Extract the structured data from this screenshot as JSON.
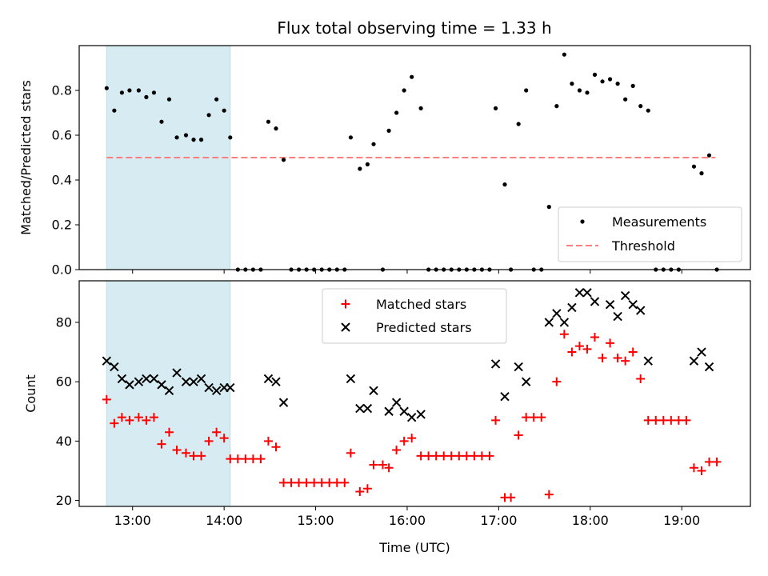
{
  "title": "Flux total observing time = 1.33 h",
  "colors": {
    "threshold": "#ff7f7f",
    "shade": "#add8e6",
    "matched": "#ff0000",
    "predicted": "#000000",
    "points": "#000000"
  },
  "chart_data": [
    {
      "type": "scatter",
      "ylabel": "Matched/Predicted stars",
      "xlim": [
        "12:25",
        "19:45"
      ],
      "ylim": [
        0,
        1.0
      ],
      "yticks": [
        "0.0",
        "0.2",
        "0.4",
        "0.6",
        "0.8"
      ],
      "shaded_region": [
        "12:43",
        "14:04"
      ],
      "threshold": 0.5,
      "threshold_range": [
        "12:43",
        "19:22"
      ],
      "legend_position": "lower right",
      "legend": [
        "Measurements",
        "Threshold"
      ],
      "series": [
        {
          "name": "Measurements",
          "points": [
            [
              "12:43",
              0.81
            ],
            [
              "12:48",
              0.71
            ],
            [
              "12:53",
              0.79
            ],
            [
              "12:58",
              0.8
            ],
            [
              "13:04",
              0.8
            ],
            [
              "13:09",
              0.77
            ],
            [
              "13:14",
              0.79
            ],
            [
              "13:19",
              0.66
            ],
            [
              "13:24",
              0.76
            ],
            [
              "13:29",
              0.59
            ],
            [
              "13:35",
              0.6
            ],
            [
              "13:40",
              0.58
            ],
            [
              "13:45",
              0.58
            ],
            [
              "13:50",
              0.69
            ],
            [
              "13:55",
              0.76
            ],
            [
              "14:00",
              0.71
            ],
            [
              "14:04",
              0.59
            ],
            [
              "14:09",
              0.0
            ],
            [
              "14:14",
              0.0
            ],
            [
              "14:19",
              0.0
            ],
            [
              "14:24",
              0.0
            ],
            [
              "14:29",
              0.66
            ],
            [
              "14:34",
              0.63
            ],
            [
              "14:39",
              0.49
            ],
            [
              "14:44",
              0.0
            ],
            [
              "14:49",
              0.0
            ],
            [
              "14:54",
              0.0
            ],
            [
              "14:59",
              0.0
            ],
            [
              "15:04",
              0.0
            ],
            [
              "15:09",
              0.0
            ],
            [
              "15:14",
              0.0
            ],
            [
              "15:19",
              0.0
            ],
            [
              "15:23",
              0.59
            ],
            [
              "15:29",
              0.45
            ],
            [
              "15:34",
              0.47
            ],
            [
              "15:38",
              0.56
            ],
            [
              "15:44",
              0.0
            ],
            [
              "15:48",
              0.62
            ],
            [
              "15:53",
              0.7
            ],
            [
              "15:58",
              0.8
            ],
            [
              "16:03",
              0.86
            ],
            [
              "16:09",
              0.72
            ],
            [
              "16:14",
              0.0
            ],
            [
              "16:19",
              0.0
            ],
            [
              "16:24",
              0.0
            ],
            [
              "16:29",
              0.0
            ],
            [
              "16:34",
              0.0
            ],
            [
              "16:39",
              0.0
            ],
            [
              "16:44",
              0.0
            ],
            [
              "16:49",
              0.0
            ],
            [
              "16:54",
              0.0
            ],
            [
              "16:58",
              0.72
            ],
            [
              "17:04",
              0.38
            ],
            [
              "17:08",
              0.0
            ],
            [
              "17:13",
              0.65
            ],
            [
              "17:18",
              0.8
            ],
            [
              "17:23",
              0.0
            ],
            [
              "17:28",
              0.0
            ],
            [
              "17:33",
              0.28
            ],
            [
              "17:38",
              0.73
            ],
            [
              "17:43",
              0.96
            ],
            [
              "17:48",
              0.83
            ],
            [
              "17:53",
              0.8
            ],
            [
              "17:58",
              0.79
            ],
            [
              "18:03",
              0.87
            ],
            [
              "18:08",
              0.84
            ],
            [
              "18:13",
              0.85
            ],
            [
              "18:18",
              0.83
            ],
            [
              "18:23",
              0.76
            ],
            [
              "18:28",
              0.82
            ],
            [
              "18:33",
              0.73
            ],
            [
              "18:38",
              0.71
            ],
            [
              "18:43",
              0.0
            ],
            [
              "18:48",
              0.0
            ],
            [
              "18:53",
              0.0
            ],
            [
              "18:58",
              0.0
            ],
            [
              "19:08",
              0.46
            ],
            [
              "19:13",
              0.43
            ],
            [
              "19:18",
              0.51
            ],
            [
              "19:23",
              0.0
            ]
          ]
        }
      ]
    },
    {
      "type": "scatter",
      "ylabel": "Count",
      "xlabel": "Time (UTC)",
      "xlim": [
        "12:25",
        "19:45"
      ],
      "ylim": [
        18,
        94
      ],
      "yticks": [
        "20",
        "40",
        "60",
        "80"
      ],
      "xticks": [
        "13:00",
        "14:00",
        "15:00",
        "16:00",
        "17:00",
        "18:00",
        "19:00"
      ],
      "shaded_region": [
        "12:43",
        "14:04"
      ],
      "legend_position": "upper center",
      "legend": [
        "Matched stars",
        "Predicted stars"
      ],
      "series": [
        {
          "name": "Matched stars",
          "marker": "+",
          "points": [
            [
              "12:43",
              54
            ],
            [
              "12:48",
              46
            ],
            [
              "12:53",
              48
            ],
            [
              "12:58",
              47
            ],
            [
              "13:04",
              48
            ],
            [
              "13:09",
              47
            ],
            [
              "13:14",
              48
            ],
            [
              "13:19",
              39
            ],
            [
              "13:24",
              43
            ],
            [
              "13:29",
              37
            ],
            [
              "13:35",
              36
            ],
            [
              "13:40",
              35
            ],
            [
              "13:45",
              35
            ],
            [
              "13:50",
              40
            ],
            [
              "13:55",
              43
            ],
            [
              "14:00",
              41
            ],
            [
              "14:04",
              34
            ],
            [
              "14:09",
              34
            ],
            [
              "14:14",
              34
            ],
            [
              "14:19",
              34
            ],
            [
              "14:24",
              34
            ],
            [
              "14:29",
              40
            ],
            [
              "14:34",
              38
            ],
            [
              "14:39",
              26
            ],
            [
              "14:44",
              26
            ],
            [
              "14:49",
              26
            ],
            [
              "14:54",
              26
            ],
            [
              "14:59",
              26
            ],
            [
              "15:04",
              26
            ],
            [
              "15:09",
              26
            ],
            [
              "15:14",
              26
            ],
            [
              "15:19",
              26
            ],
            [
              "15:23",
              36
            ],
            [
              "15:29",
              23
            ],
            [
              "15:34",
              24
            ],
            [
              "15:38",
              32
            ],
            [
              "15:44",
              32
            ],
            [
              "15:48",
              31
            ],
            [
              "15:53",
              37
            ],
            [
              "15:58",
              40
            ],
            [
              "16:03",
              41
            ],
            [
              "16:09",
              35
            ],
            [
              "16:14",
              35
            ],
            [
              "16:19",
              35
            ],
            [
              "16:24",
              35
            ],
            [
              "16:29",
              35
            ],
            [
              "16:34",
              35
            ],
            [
              "16:39",
              35
            ],
            [
              "16:44",
              35
            ],
            [
              "16:49",
              35
            ],
            [
              "16:54",
              35
            ],
            [
              "16:58",
              47
            ],
            [
              "17:04",
              21
            ],
            [
              "17:08",
              21
            ],
            [
              "17:13",
              42
            ],
            [
              "17:18",
              48
            ],
            [
              "17:23",
              48
            ],
            [
              "17:28",
              48
            ],
            [
              "17:33",
              22
            ],
            [
              "17:38",
              60
            ],
            [
              "17:43",
              76
            ],
            [
              "17:48",
              70
            ],
            [
              "17:53",
              72
            ],
            [
              "17:58",
              71
            ],
            [
              "18:03",
              75
            ],
            [
              "18:08",
              68
            ],
            [
              "18:13",
              73
            ],
            [
              "18:18",
              68
            ],
            [
              "18:23",
              67
            ],
            [
              "18:28",
              70
            ],
            [
              "18:33",
              61
            ],
            [
              "18:38",
              47
            ],
            [
              "18:43",
              47
            ],
            [
              "18:48",
              47
            ],
            [
              "18:53",
              47
            ],
            [
              "18:58",
              47
            ],
            [
              "19:03",
              47
            ],
            [
              "19:08",
              31
            ],
            [
              "19:13",
              30
            ],
            [
              "19:18",
              33
            ],
            [
              "19:23",
              33
            ]
          ]
        },
        {
          "name": "Predicted stars",
          "marker": "x",
          "points": [
            [
              "12:43",
              67
            ],
            [
              "12:48",
              65
            ],
            [
              "12:53",
              61
            ],
            [
              "12:58",
              59
            ],
            [
              "13:04",
              60
            ],
            [
              "13:09",
              61
            ],
            [
              "13:14",
              61
            ],
            [
              "13:19",
              59
            ],
            [
              "13:24",
              57
            ],
            [
              "13:29",
              63
            ],
            [
              "13:35",
              60
            ],
            [
              "13:40",
              60
            ],
            [
              "13:45",
              61
            ],
            [
              "13:50",
              58
            ],
            [
              "13:55",
              57
            ],
            [
              "14:00",
              58
            ],
            [
              "14:04",
              58
            ],
            [
              "14:29",
              61
            ],
            [
              "14:34",
              60
            ],
            [
              "14:39",
              53
            ],
            [
              "15:23",
              61
            ],
            [
              "15:29",
              51
            ],
            [
              "15:34",
              51
            ],
            [
              "15:38",
              57
            ],
            [
              "15:48",
              50
            ],
            [
              "15:53",
              53
            ],
            [
              "15:58",
              50
            ],
            [
              "16:03",
              48
            ],
            [
              "16:09",
              49
            ],
            [
              "16:58",
              66
            ],
            [
              "17:04",
              55
            ],
            [
              "17:13",
              65
            ],
            [
              "17:18",
              60
            ],
            [
              "17:33",
              80
            ],
            [
              "17:38",
              83
            ],
            [
              "17:43",
              80
            ],
            [
              "17:48",
              85
            ],
            [
              "17:53",
              90
            ],
            [
              "17:58",
              90
            ],
            [
              "18:03",
              87
            ],
            [
              "18:13",
              86
            ],
            [
              "18:18",
              82
            ],
            [
              "18:23",
              89
            ],
            [
              "18:28",
              86
            ],
            [
              "18:33",
              84
            ],
            [
              "18:38",
              67
            ],
            [
              "19:08",
              67
            ],
            [
              "19:13",
              70
            ],
            [
              "19:18",
              65
            ]
          ]
        }
      ]
    }
  ]
}
